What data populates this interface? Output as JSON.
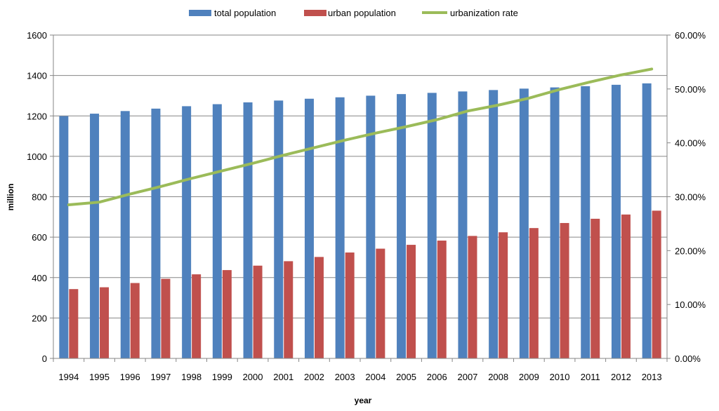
{
  "chart_data": {
    "type": "bar",
    "categories": [
      "1994",
      "1995",
      "1996",
      "1997",
      "1998",
      "1999",
      "2000",
      "2001",
      "2002",
      "2003",
      "2004",
      "2005",
      "2006",
      "2007",
      "2008",
      "2009",
      "2010",
      "2011",
      "2012",
      "2013"
    ],
    "series": [
      {
        "name": "total population",
        "type": "bar",
        "axis": "left",
        "color": "#4f81bd",
        "values": [
          1199,
          1211,
          1224,
          1236,
          1248,
          1258,
          1267,
          1276,
          1285,
          1292,
          1300,
          1308,
          1314,
          1321,
          1328,
          1335,
          1341,
          1347,
          1354,
          1361
        ]
      },
      {
        "name": "urban population",
        "type": "bar",
        "axis": "left",
        "color": "#c0504d",
        "values": [
          343,
          352,
          373,
          394,
          416,
          437,
          459,
          481,
          502,
          524,
          543,
          562,
          583,
          606,
          624,
          645,
          670,
          691,
          712,
          731
        ]
      },
      {
        "name": "urbanization rate",
        "type": "line",
        "axis": "right",
        "color": "#9bbb59",
        "values": [
          28.5,
          29.0,
          30.5,
          31.9,
          33.4,
          34.8,
          36.2,
          37.7,
          39.1,
          40.5,
          41.8,
          43.0,
          44.3,
          45.9,
          47.0,
          48.3,
          49.9,
          51.3,
          52.6,
          53.7
        ]
      }
    ],
    "xlabel": "year",
    "ylabel": "million",
    "ylim": [
      0,
      1600
    ],
    "yticks": [
      "0",
      "200",
      "400",
      "600",
      "800",
      "1000",
      "1200",
      "1400",
      "1600"
    ],
    "y2lim": [
      0,
      60
    ],
    "y2ticks": [
      "0.00%",
      "10.00%",
      "20.00%",
      "30.00%",
      "40.00%",
      "50.00%",
      "60.00%"
    ],
    "grid": true,
    "legend": "top"
  }
}
